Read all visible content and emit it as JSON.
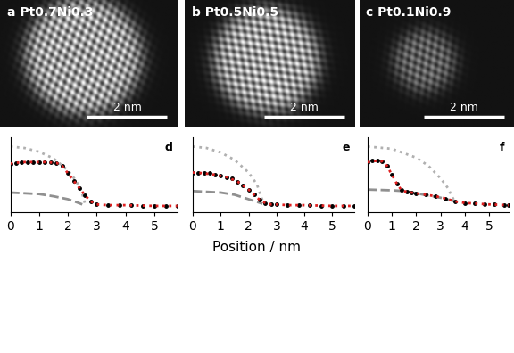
{
  "xlabel": "Position / nm",
  "scale_bar": {
    "length": 2,
    "label": "2 nm"
  },
  "images": [
    {
      "label": "a",
      "title": "Pt0.7Ni0.3"
    },
    {
      "label": "b",
      "title": "Pt0.5Ni0.5"
    },
    {
      "label": "c",
      "title": "Pt0.1Ni0.9"
    }
  ],
  "chart_data": [
    {
      "type": "line",
      "label": "d",
      "xlim": [
        0,
        5.8
      ],
      "xticks": [
        0,
        1,
        2,
        3,
        4,
        5
      ],
      "ylim": [
        0,
        1
      ],
      "tick_labels": "x",
      "series": [
        {
          "color": "#000000",
          "marker": "o",
          "line_style": "none",
          "x": [
            0,
            0.2,
            0.4,
            0.6,
            0.8,
            1.0,
            1.2,
            1.4,
            1.6,
            1.8,
            2.0,
            2.2,
            2.4,
            2.6,
            2.8,
            3.0,
            3.4,
            3.8,
            4.2,
            4.6,
            5.0,
            5.4,
            5.8
          ],
          "values": [
            0.64,
            0.66,
            0.67,
            0.67,
            0.67,
            0.67,
            0.67,
            0.67,
            0.66,
            0.62,
            0.52,
            0.42,
            0.32,
            0.22,
            0.14,
            0.1,
            0.09,
            0.09,
            0.09,
            0.08,
            0.08,
            0.08,
            0.08
          ]
        },
        {
          "color": "#e02020",
          "line_style": "dotted",
          "x": [
            0,
            0.4,
            0.8,
            1.2,
            1.6,
            1.8,
            2.0,
            2.2,
            2.4,
            2.6,
            2.8,
            3.0,
            3.4,
            4.0,
            5.0,
            5.8
          ],
          "values": [
            0.65,
            0.67,
            0.67,
            0.67,
            0.66,
            0.62,
            0.52,
            0.42,
            0.32,
            0.22,
            0.14,
            0.1,
            0.09,
            0.09,
            0.08,
            0.08
          ]
        },
        {
          "color": "#b0b0b0",
          "line_style": "dotted",
          "x": [
            0,
            0.5,
            1.0,
            1.5,
            2.0,
            2.3,
            2.5,
            2.6
          ],
          "values": [
            0.88,
            0.86,
            0.81,
            0.72,
            0.56,
            0.41,
            0.24,
            0.1
          ]
        },
        {
          "color": "#909090",
          "line_style": "dashed",
          "x": [
            0,
            0.5,
            1.0,
            1.5,
            2.0,
            2.3,
            2.5
          ],
          "values": [
            0.26,
            0.25,
            0.24,
            0.21,
            0.17,
            0.13,
            0.1
          ]
        }
      ]
    },
    {
      "type": "line",
      "label": "e",
      "xlim": [
        0,
        5.8
      ],
      "xticks": [
        0,
        1,
        2,
        3,
        4,
        5
      ],
      "ylim": [
        0,
        1
      ],
      "tick_labels": "x",
      "series": [
        {
          "color": "#000000",
          "marker": "o",
          "line_style": "none",
          "x": [
            0,
            0.2,
            0.4,
            0.6,
            0.8,
            1.0,
            1.2,
            1.4,
            1.6,
            1.8,
            2.0,
            2.2,
            2.4,
            2.6,
            2.8,
            3.0,
            3.4,
            3.8,
            4.2,
            4.6,
            5.0,
            5.4,
            5.8
          ],
          "values": [
            0.53,
            0.53,
            0.52,
            0.52,
            0.5,
            0.49,
            0.47,
            0.45,
            0.41,
            0.36,
            0.3,
            0.23,
            0.16,
            0.12,
            0.1,
            0.1,
            0.09,
            0.09,
            0.09,
            0.08,
            0.08,
            0.08,
            0.08
          ]
        },
        {
          "color": "#e02020",
          "line_style": "dotted",
          "x": [
            0,
            0.4,
            0.8,
            1.2,
            1.6,
            2.0,
            2.2,
            2.4,
            2.6,
            2.8,
            3.0,
            3.4,
            4.0,
            5.0,
            5.8
          ],
          "values": [
            0.53,
            0.52,
            0.5,
            0.47,
            0.41,
            0.3,
            0.23,
            0.16,
            0.12,
            0.1,
            0.1,
            0.09,
            0.09,
            0.08,
            0.08
          ]
        },
        {
          "color": "#b0b0b0",
          "line_style": "dotted",
          "x": [
            0,
            0.5,
            1.0,
            1.5,
            2.0,
            2.3,
            2.5
          ],
          "values": [
            0.88,
            0.86,
            0.8,
            0.7,
            0.53,
            0.37,
            0.15
          ]
        },
        {
          "color": "#909090",
          "line_style": "dashed",
          "x": [
            0,
            0.5,
            1.0,
            1.5,
            2.0,
            2.5
          ],
          "values": [
            0.28,
            0.27,
            0.26,
            0.23,
            0.17,
            0.11
          ]
        }
      ]
    },
    {
      "type": "line",
      "label": "f",
      "xlim": [
        0,
        5.8
      ],
      "xticks": [
        0,
        1,
        2,
        3,
        4,
        5
      ],
      "ylim": [
        0,
        1
      ],
      "tick_labels": "x",
      "series": [
        {
          "color": "#000000",
          "marker": "o",
          "line_style": "none",
          "x": [
            0,
            0.2,
            0.4,
            0.6,
            0.8,
            1.0,
            1.2,
            1.4,
            1.6,
            1.8,
            2.0,
            2.4,
            2.8,
            3.2,
            3.6,
            4.0,
            4.4,
            4.8,
            5.2,
            5.6,
            5.8
          ],
          "values": [
            0.67,
            0.69,
            0.69,
            0.68,
            0.62,
            0.5,
            0.38,
            0.29,
            0.27,
            0.26,
            0.25,
            0.23,
            0.21,
            0.18,
            0.14,
            0.12,
            0.11,
            0.1,
            0.1,
            0.09,
            0.09
          ]
        },
        {
          "color": "#e02020",
          "line_style": "dotted",
          "x": [
            0,
            0.4,
            0.6,
            0.8,
            1.0,
            1.2,
            1.4,
            1.6,
            2.0,
            2.4,
            2.8,
            3.2,
            3.6,
            4.0,
            5.0,
            5.8
          ],
          "values": [
            0.67,
            0.69,
            0.68,
            0.62,
            0.5,
            0.38,
            0.29,
            0.27,
            0.25,
            0.23,
            0.21,
            0.18,
            0.14,
            0.12,
            0.1,
            0.09
          ]
        },
        {
          "color": "#b0b0b0",
          "line_style": "dotted",
          "x": [
            0,
            1.0,
            2.0,
            2.5,
            3.0,
            3.3,
            3.6
          ],
          "values": [
            0.88,
            0.85,
            0.73,
            0.62,
            0.45,
            0.32,
            0.12
          ]
        },
        {
          "color": "#909090",
          "line_style": "dashed",
          "x": [
            0,
            1.0,
            1.5,
            2.0,
            3.0,
            3.6
          ],
          "values": [
            0.3,
            0.29,
            0.28,
            0.25,
            0.19,
            0.14
          ]
        }
      ]
    }
  ]
}
